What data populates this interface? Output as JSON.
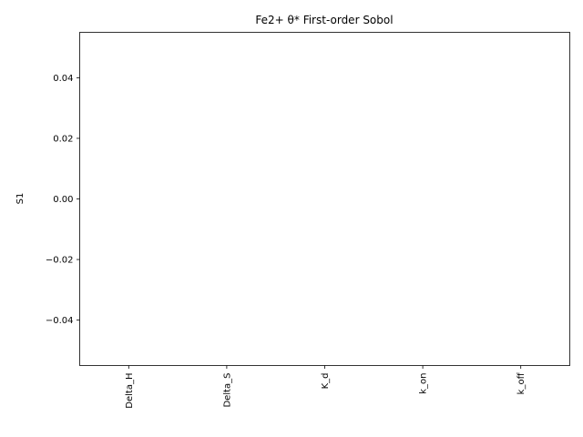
{
  "chart_data": {
    "type": "bar",
    "title": "Fe2+ θ* First-order Sobol",
    "xlabel": "",
    "ylabel": "S1",
    "categories": [
      "Delta_H",
      "Delta_S",
      "K_d",
      "k_on",
      "k_off"
    ],
    "values": [
      0,
      0,
      0,
      0,
      0
    ],
    "ylim": [
      -0.055,
      0.055
    ],
    "yticks": [
      -0.04,
      -0.02,
      0.0,
      0.02,
      0.04
    ],
    "ytick_labels": [
      "−0.04",
      "−0.02",
      "0.00",
      "0.02",
      "0.04"
    ],
    "grid": false,
    "legend": "none"
  }
}
